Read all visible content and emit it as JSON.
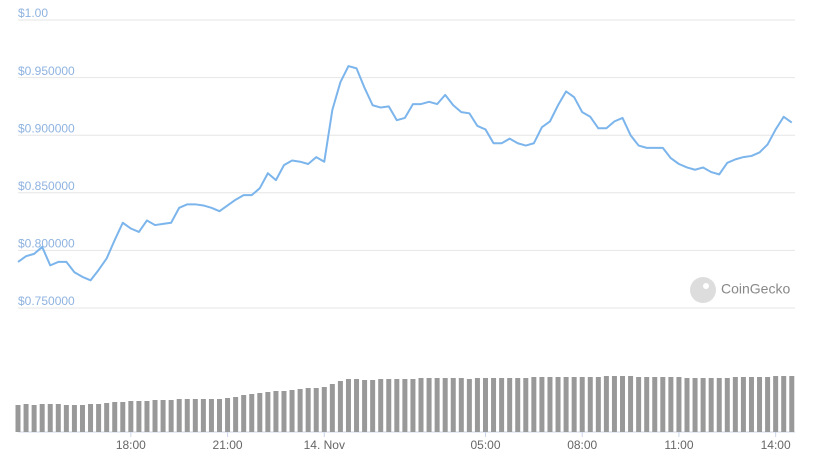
{
  "chart_data": [
    {
      "type": "line",
      "x": [
        14.5,
        14.75,
        15,
        15.25,
        15.5,
        15.75,
        16,
        16.25,
        16.5,
        16.75,
        17,
        17.25,
        17.5,
        17.75,
        18,
        18.25,
        18.5,
        18.75,
        19,
        19.25,
        19.5,
        19.75,
        20,
        20.25,
        20.5,
        20.75,
        21,
        21.25,
        21.5,
        21.75,
        22,
        22.25,
        22.5,
        22.75,
        23,
        23.25,
        23.5,
        23.75,
        24,
        24.25,
        24.5,
        24.75,
        25,
        25.25,
        25.5,
        25.75,
        26,
        26.25,
        26.5,
        26.75,
        27,
        27.25,
        27.5,
        27.75,
        28,
        28.25,
        28.5,
        28.75,
        29,
        29.25,
        29.5,
        29.75,
        30,
        30.25,
        30.5,
        30.75,
        31,
        31.25,
        31.5,
        31.75,
        32,
        32.25,
        32.5,
        32.75,
        33,
        33.25,
        33.5,
        33.75,
        34,
        34.25,
        34.5,
        34.75,
        35,
        35.25,
        35.5,
        35.75,
        36,
        36.25,
        36.5,
        36.75,
        37,
        37.25,
        37.5,
        37.75,
        38,
        38.25,
        38.5
      ],
      "values": [
        0.79,
        0.795,
        0.797,
        0.803,
        0.787,
        0.79,
        0.79,
        0.781,
        0.777,
        0.774,
        0.783,
        0.793,
        0.809,
        0.824,
        0.819,
        0.816,
        0.826,
        0.822,
        0.823,
        0.824,
        0.837,
        0.84,
        0.84,
        0.839,
        0.837,
        0.834,
        0.839,
        0.844,
        0.848,
        0.848,
        0.854,
        0.867,
        0.861,
        0.874,
        0.878,
        0.877,
        0.875,
        0.881,
        0.877,
        0.922,
        0.946,
        0.96,
        0.958,
        0.941,
        0.926,
        0.924,
        0.925,
        0.913,
        0.915,
        0.927,
        0.927,
        0.929,
        0.927,
        0.935,
        0.926,
        0.92,
        0.919,
        0.908,
        0.905,
        0.893,
        0.893,
        0.897,
        0.893,
        0.891,
        0.893,
        0.907,
        0.912,
        0.926,
        0.938,
        0.933,
        0.92,
        0.916,
        0.906,
        0.906,
        0.912,
        0.915,
        0.9,
        0.891,
        0.889,
        0.889,
        0.889,
        0.88,
        0.875,
        0.872,
        0.87,
        0.872,
        0.868,
        0.866,
        0.876,
        0.879,
        0.881,
        0.882,
        0.885,
        0.892,
        0.905,
        0.916,
        0.911
      ],
      "color": "#7cb5ec",
      "xlim": [
        14.5,
        38.6
      ],
      "xticks": [
        {
          "value": 18,
          "label": "18:00"
        },
        {
          "value": 21,
          "label": "21:00"
        },
        {
          "value": 24,
          "label": "14. Nov"
        },
        {
          "value": 29,
          "label": "05:00"
        },
        {
          "value": 32,
          "label": "08:00"
        },
        {
          "value": 35,
          "label": "11:00"
        },
        {
          "value": 38,
          "label": "14:00"
        }
      ],
      "ylim": [
        0.75,
        1
      ],
      "yticks": [
        {
          "value": 1,
          "label": "$1.00"
        },
        {
          "value": 0.95,
          "label": "$0.950000"
        },
        {
          "value": 0.9,
          "label": "$0.900000"
        },
        {
          "value": 0.85,
          "label": "$0.850000"
        },
        {
          "value": 0.8,
          "label": "$0.800000"
        },
        {
          "value": 0.75,
          "label": "$0.750000"
        }
      ],
      "grid": true,
      "watermark": "CoinGecko"
    },
    {
      "type": "bar",
      "values": [
        27,
        28,
        27,
        28,
        28,
        28,
        27,
        27,
        27,
        28,
        28,
        29,
        30,
        30,
        31,
        31,
        31,
        32,
        32,
        32,
        33,
        33,
        33,
        33,
        33,
        33,
        34,
        35,
        37,
        38,
        39,
        40,
        41,
        41,
        42,
        43,
        44,
        44,
        45,
        48,
        51,
        53,
        53,
        52,
        52,
        53,
        53,
        53,
        53,
        53,
        54,
        54,
        54,
        54,
        54,
        54,
        53,
        54,
        54,
        54,
        54,
        54,
        54,
        54,
        55,
        55,
        55,
        55,
        55,
        55,
        55,
        55,
        55,
        56,
        56,
        56,
        56,
        55,
        55,
        55,
        55,
        55,
        55,
        54,
        54,
        54,
        54,
        54,
        54,
        55,
        55,
        55,
        55,
        55,
        56,
        56,
        56
      ],
      "color": "#999999"
    }
  ]
}
